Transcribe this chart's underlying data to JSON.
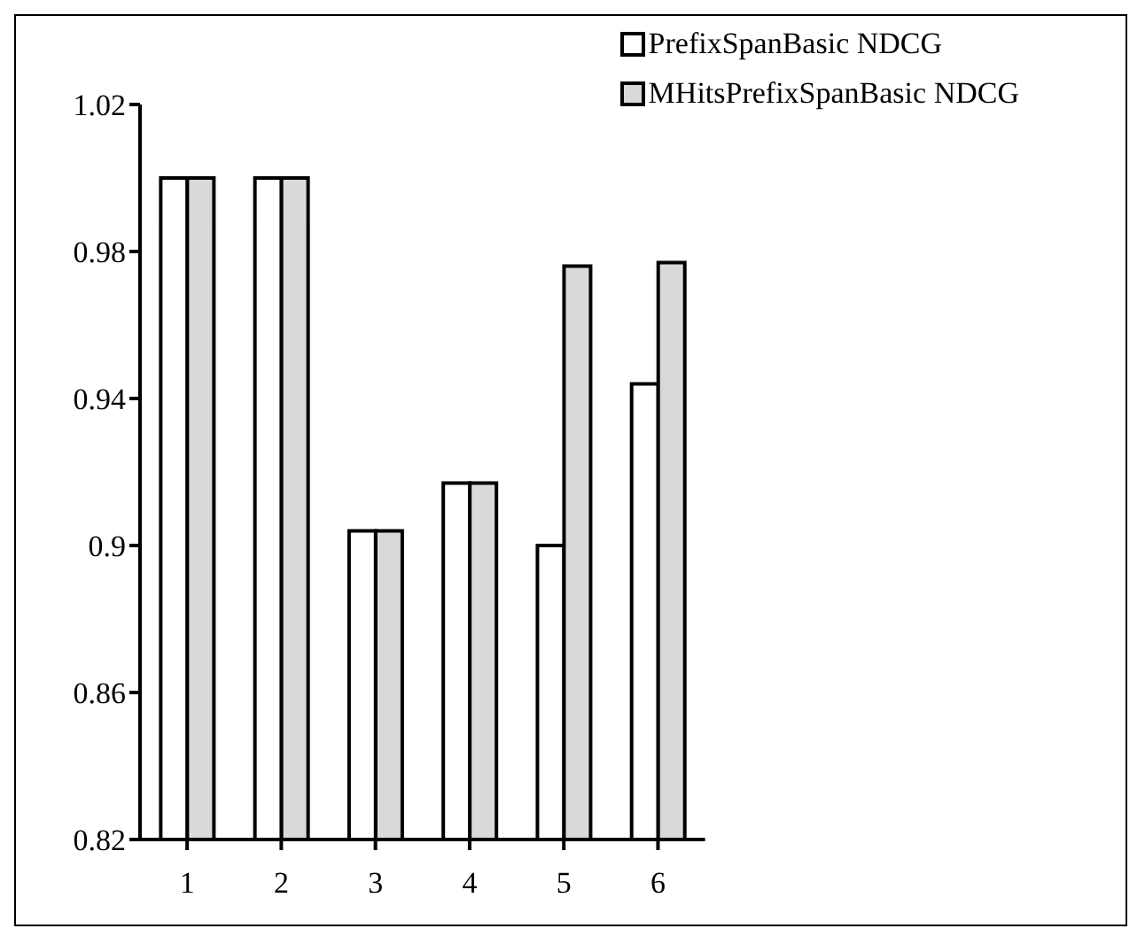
{
  "chart_data": {
    "type": "bar",
    "categories": [
      "1",
      "2",
      "3",
      "4",
      "5",
      "6"
    ],
    "series": [
      {
        "name": "PrefixSpanBasic NDCG",
        "color": "#ffffff",
        "values": [
          1.0,
          1.0,
          0.904,
          0.917,
          0.9,
          0.944
        ]
      },
      {
        "name": "MHitsPrefixSpanBasic NDCG",
        "color": "#d9d9d9",
        "values": [
          1.0,
          1.0,
          0.904,
          0.917,
          0.976,
          0.977
        ]
      }
    ],
    "ylim": [
      0.82,
      1.02
    ],
    "yticks": [
      0.82,
      0.86,
      0.9,
      0.94,
      0.98,
      1.02
    ],
    "grid": false,
    "legend": "top right"
  }
}
